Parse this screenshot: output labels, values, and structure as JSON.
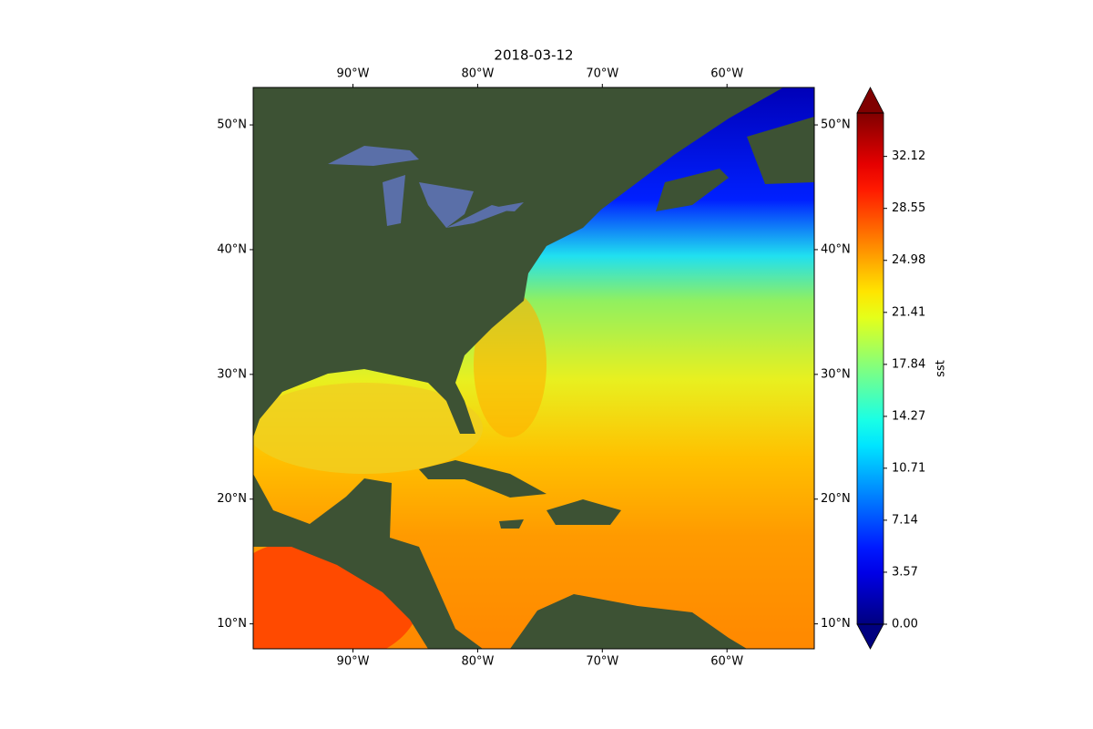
{
  "chart_data": {
    "type": "map",
    "title": "2018-03-12",
    "xlim": [
      -98,
      -53
    ],
    "ylim": [
      8,
      53
    ],
    "xticks": [
      {
        "value": -90,
        "label": "90°W"
      },
      {
        "value": -80,
        "label": "80°W"
      },
      {
        "value": -70,
        "label": "70°W"
      },
      {
        "value": -60,
        "label": "60°W"
      }
    ],
    "yticks": [
      {
        "value": 10,
        "label": "10°N"
      },
      {
        "value": 20,
        "label": "20°N"
      },
      {
        "value": 30,
        "label": "30°N"
      },
      {
        "value": 40,
        "label": "40°N"
      },
      {
        "value": 50,
        "label": "50°N"
      }
    ],
    "colorbar": {
      "label": "sst",
      "colormap": "jet",
      "extend": "both",
      "lim": [
        0,
        35.1
      ],
      "ticks": [
        {
          "value": 0,
          "label": "0.00"
        },
        3.57,
        7.14,
        10.71,
        14.27,
        17.84,
        21.41,
        24.98,
        28.55,
        32.12
      ]
    }
  }
}
